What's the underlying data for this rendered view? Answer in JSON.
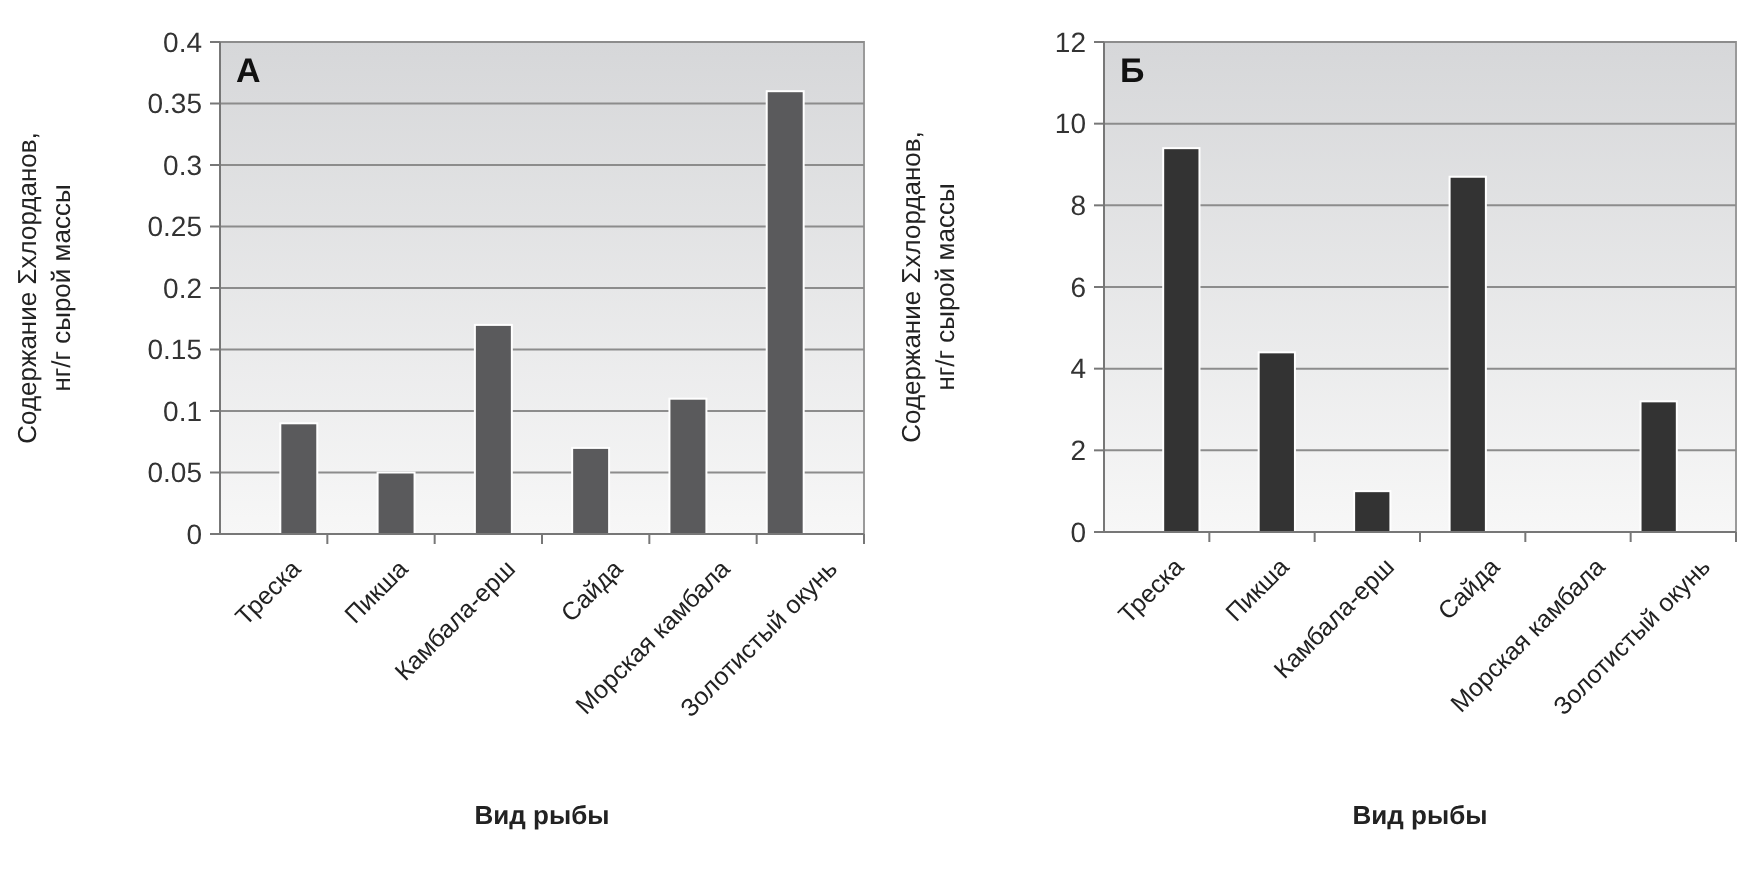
{
  "chart_data": [
    {
      "type": "bar",
      "title": "А",
      "xlabel": "Вид рыбы",
      "ylabel": "Содержание Σхлорданов,\nнг/г сырой массы",
      "categories": [
        "Треска",
        "Пикша",
        "Камбала-ерш",
        "Сайда",
        "Морская камбала",
        "Золотистый окунь"
      ],
      "values": [
        0.09,
        0.05,
        0.17,
        0.07,
        0.11,
        0.36
      ],
      "color": "#5a5a5c",
      "ylim": [
        0,
        0.4
      ],
      "yticks": [
        0,
        0.05,
        0.1,
        0.15,
        0.2,
        0.25,
        0.3,
        0.35,
        0.4
      ],
      "grid": "y"
    },
    {
      "type": "bar",
      "title": "Б",
      "xlabel": "Вид рыбы",
      "ylabel": "Содержание Σхлорданов,\nнг/г сырой массы",
      "categories": [
        "Треска",
        "Пикша",
        "Камбала-ерш",
        "Сайда",
        "Морская камбала",
        "Золотистый окунь"
      ],
      "values": [
        9.4,
        4.4,
        1.0,
        8.7,
        0,
        3.2
      ],
      "color": "#333333",
      "ylim": [
        0,
        12
      ],
      "yticks": [
        0,
        2,
        4,
        6,
        8,
        10,
        12
      ],
      "grid": "y"
    }
  ]
}
